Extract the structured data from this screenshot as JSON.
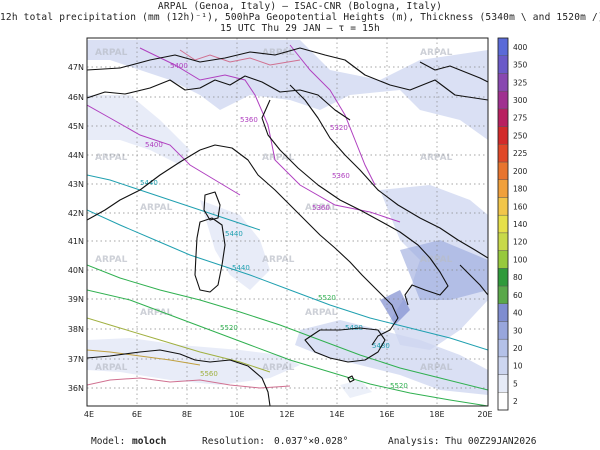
{
  "header": {
    "line1": "ARPAL (Genoa, Italy)  –  ISAC-CNR (Bologna, Italy)",
    "line2": "12h total precipitation (mm (12h)⁻¹), 500hPa Geopotential Heights (m), Thickness (5340m \\ and 1520m /)",
    "line3": "15 UTC Thu 29 JAN  –  τ = 15h"
  },
  "watermark": "ARPAL",
  "map": {
    "lon_labels": [
      "4E",
      "6E",
      "8E",
      "10E",
      "12E",
      "14E",
      "16E",
      "18E",
      "20E"
    ],
    "lat_labels": [
      "36N",
      "37N",
      "38N",
      "39N",
      "40N",
      "41N",
      "42N",
      "43N",
      "44N",
      "45N",
      "46N",
      "47N"
    ],
    "contour_labels": {
      "purple": [
        "5360",
        "5400",
        "5400",
        "5360",
        "5360",
        "5320"
      ],
      "teal": [
        "5440",
        "5440",
        "5440",
        "5480",
        "5480"
      ],
      "green": [
        "5520",
        "5520",
        "5520"
      ],
      "olive": [
        "5560"
      ]
    }
  },
  "colorbar": {
    "levels": [
      "2",
      "5",
      "10",
      "20",
      "30",
      "40",
      "60",
      "80",
      "100",
      "120",
      "140",
      "160",
      "180",
      "200",
      "225",
      "250",
      "275",
      "300",
      "325",
      "350",
      "400"
    ],
    "colors": [
      "#ffffff",
      "#e6ebf7",
      "#cdd6f0",
      "#b4c1e8",
      "#98a6dc",
      "#7f8dd0",
      "#5aa84a",
      "#2f9a3a",
      "#97c93d",
      "#c8d94a",
      "#e6e04a",
      "#f2c64a",
      "#f0a03c",
      "#e8742e",
      "#e04828",
      "#d22a2a",
      "#b82060",
      "#a03090",
      "#8848b0",
      "#6a5ac8",
      "#5a6ad8"
    ]
  },
  "footer": {
    "model_label": "Model:",
    "model_value": "moloch",
    "resolution_label": "Resolution:",
    "resolution_value": "0.037°×0.028°",
    "analysis_label": "Analysis:",
    "analysis_value": "Thu 00Z29JAN2026"
  }
}
